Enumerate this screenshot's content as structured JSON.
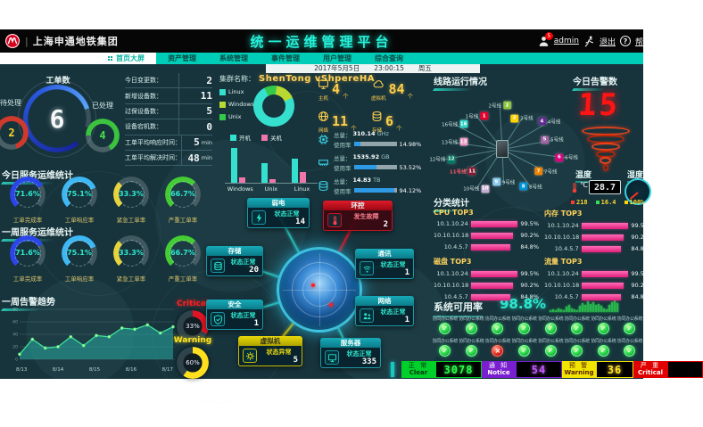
{
  "header": {
    "company": "上海申通地铁集团",
    "title": "统一运维管理平台",
    "user": "admin",
    "badge": "5",
    "logout": "退出",
    "help": "帮"
  },
  "nav": {
    "tabs": [
      "首页大屏",
      "资产管理",
      "系统管理",
      "事件管理",
      "用户管理",
      "综合查询"
    ],
    "date": "2017年5月5日",
    "time": "23:00:15",
    "weekday": "周五"
  },
  "workorder": {
    "title": "工单数",
    "total": "6",
    "pending_label": "待处理",
    "pending_value": "2",
    "done_label": "已处理",
    "done_value": "4",
    "stats": [
      {
        "label": "今日变更数：",
        "value": "2",
        "unit": ""
      },
      {
        "label": "新增设备数：",
        "value": "11",
        "unit": ""
      },
      {
        "label": "过保设备数：",
        "value": "5",
        "unit": ""
      },
      {
        "label": "设备宕机数：",
        "value": "0",
        "unit": ""
      },
      {
        "label": "工单平均响应时间：",
        "value": "5",
        "unit": "min"
      },
      {
        "label": "工单平均解决时间：",
        "value": "48",
        "unit": "min"
      }
    ]
  },
  "today_stats": {
    "title": "今日服务运维统计",
    "gauges": [
      {
        "value": "71.6%",
        "pct": 71.6,
        "label": "工单完成率",
        "color": "#2b46e8"
      },
      {
        "value": "75.1%",
        "pct": 75.1,
        "label": "工单响应率",
        "color": "#3db8f5"
      },
      {
        "value": "33.3%",
        "pct": 33.3,
        "label": "紧急工单率",
        "color": "#e7d33b"
      },
      {
        "value": "66.7%",
        "pct": 66.7,
        "label": "严重工单率",
        "color": "#44cc35"
      }
    ]
  },
  "week_stats": {
    "title": "一周服务运维统计",
    "gauges": [
      {
        "value": "71.6%",
        "pct": 71.6,
        "label": "工单完成率",
        "color": "#2b46e8"
      },
      {
        "value": "75.1%",
        "pct": 75.1,
        "label": "工单响应率",
        "color": "#3db8f5"
      },
      {
        "value": "33.3%",
        "pct": 33.3,
        "label": "紧急工单率",
        "color": "#e7d33b"
      },
      {
        "value": "66.7%",
        "pct": 66.7,
        "label": "严重工单率",
        "color": "#44cc35"
      }
    ]
  },
  "trend": {
    "title": "一周告警趋势",
    "chart_data": {
      "type": "area",
      "x_labels": [
        "8/13",
        "8/14",
        "8/15",
        "8/16",
        "8/17"
      ],
      "values": [
        8,
        32,
        18,
        20,
        36,
        22,
        38,
        36,
        50,
        48,
        55,
        42,
        52
      ],
      "ylim": [
        0,
        80
      ],
      "yticks": [
        0,
        20,
        40,
        60,
        80
      ],
      "line_color": "#3fe09a",
      "fill_color": "rgba(40,170,160,0.55)",
      "grid": true
    }
  },
  "alert_gauges": {
    "critical_label": "Critical",
    "critical_value": "33%",
    "critical_pct": 33,
    "warning_label": "Warning",
    "warning_value": "60%",
    "warning_pct": 60
  },
  "cluster": {
    "name_label": "集群名称：",
    "name": "ShenTong vShpereHA",
    "os_donut": {
      "type": "pie",
      "legend": [
        {
          "label": "Linux",
          "color": "#35e0cf",
          "value": 74
        },
        {
          "label": "Windows",
          "color": "#b8d832",
          "value": 16
        },
        {
          "label": "Unix",
          "color": "#35c94a",
          "value": 10
        }
      ]
    },
    "power_bars": {
      "type": "bar",
      "categories": [
        "Windows",
        "Unix",
        "Linux"
      ],
      "legend": [
        {
          "label": "开机",
          "color": "#35e0cf"
        },
        {
          "label": "关机",
          "color": "#f075a8"
        }
      ],
      "series": [
        {
          "name": "开机",
          "values": [
            62,
            35,
            43
          ]
        },
        {
          "name": "关机",
          "values": [
            9,
            7,
            19
          ]
        }
      ]
    },
    "counts": [
      {
        "label": "主机",
        "value": "4",
        "unit": "个"
      },
      {
        "label": "虚拟机",
        "value": "84",
        "unit": "个"
      },
      {
        "label": "网络",
        "value": "11",
        "unit": "个"
      },
      {
        "label": "存储",
        "value": "6",
        "unit": "个"
      }
    ],
    "resources": [
      {
        "name": "cpu",
        "total_label": "总量：",
        "total": "310.14",
        "unit": "GHz",
        "usage_label": "使用率",
        "usage": "14.98%",
        "pct": 14.98
      },
      {
        "name": "memory",
        "total_label": "总量：",
        "total": "1535.92",
        "unit": "GB",
        "usage_label": "使用率",
        "usage": "53.52%",
        "pct": 53.52
      },
      {
        "name": "storage",
        "total_label": "总量：",
        "total": "14.83",
        "unit": "TB",
        "usage_label": "使用率",
        "usage": "94.12%",
        "pct": 94.12
      }
    ]
  },
  "topology": {
    "nodes": [
      {
        "id": "ruodian",
        "name": "弱电",
        "status": "状态正常",
        "count": "14",
        "state": "normal"
      },
      {
        "id": "huankong",
        "name": "环控",
        "status": "发生故障",
        "count": "2",
        "state": "fault"
      },
      {
        "id": "cunchu",
        "name": "存储",
        "status": "状态正常",
        "count": "20",
        "state": "normal"
      },
      {
        "id": "tongxun",
        "name": "通讯",
        "status": "状态正常",
        "count": "1",
        "state": "normal"
      },
      {
        "id": "anquan",
        "name": "安全",
        "status": "状态正常",
        "count": "1",
        "state": "normal"
      },
      {
        "id": "wangluo",
        "name": "网络",
        "status": "状态正常",
        "count": "1",
        "state": "normal"
      },
      {
        "id": "xuniji",
        "name": "虚拟机",
        "status": "状态异常",
        "count": "5",
        "state": "warning"
      },
      {
        "id": "fuwuqi",
        "name": "服务器",
        "status": "状态正常",
        "count": "335",
        "state": "normal"
      }
    ]
  },
  "lines": {
    "title": "线路运行情况",
    "items": [
      {
        "name": "1号线",
        "color": "#e4002b"
      },
      {
        "name": "2号线",
        "color": "#8cc63e"
      },
      {
        "name": "3号线",
        "color": "#ffd100"
      },
      {
        "name": "4号线",
        "color": "#5f2c8e"
      },
      {
        "name": "5号线",
        "color": "#a064a3"
      },
      {
        "name": "6号线",
        "color": "#d9027d"
      },
      {
        "name": "7号线",
        "color": "#f08200"
      },
      {
        "name": "8号线",
        "color": "#0094d8"
      },
      {
        "name": "9号线",
        "color": "#87caed"
      },
      {
        "name": "10号线",
        "color": "#c6afd4"
      },
      {
        "name": "11号线",
        "color": "#871730",
        "alert": true
      },
      {
        "name": "12号线",
        "color": "#007a60"
      },
      {
        "name": "13号线",
        "color": "#e999c0"
      },
      {
        "name": "16号线",
        "color": "#2cd5c4"
      }
    ]
  },
  "alarm": {
    "title": "今日告警数",
    "count": "15",
    "temp_label": "温度",
    "temp_value": "28.7",
    "temp_unit": "℃",
    "humidity_label": "湿度",
    "env": [
      {
        "value": "218",
        "color": "#ff3b30"
      },
      {
        "value": "16.4",
        "color": "#35e055"
      },
      {
        "value": "100%",
        "color": "#ffd700"
      }
    ]
  },
  "classify": {
    "title": "分类统计",
    "groups": [
      {
        "title": "CPU TOP3",
        "rows": [
          {
            "ip": "10.1.10.24",
            "value": "99.5%",
            "pct": 99.5
          },
          {
            "ip": "10.10.10.18",
            "value": "90.2%",
            "pct": 90.2
          },
          {
            "ip": "10.4.5.7",
            "value": "84.8%",
            "pct": 84.8
          }
        ]
      },
      {
        "title": "内存 TOP3",
        "rows": [
          {
            "ip": "10.1.10.24",
            "value": "99.5%",
            "pct": 99.5
          },
          {
            "ip": "10.10.10.18",
            "value": "90.2%",
            "pct": 90.2
          },
          {
            "ip": "10.4.5.7",
            "value": "84.8%",
            "pct": 84.8
          }
        ]
      },
      {
        "title": "磁盘 TOP3",
        "rows": [
          {
            "ip": "10.1.10.24",
            "value": "99.5%",
            "pct": 99.5
          },
          {
            "ip": "10.10.10.18",
            "value": "90.2%",
            "pct": 90.2
          },
          {
            "ip": "10.4.5.7",
            "value": "84.8%",
            "pct": 84.8
          }
        ]
      },
      {
        "title": "流量 TOP3",
        "rows": [
          {
            "ip": "10.1.10.24",
            "value": "99.5%",
            "pct": 99.5
          },
          {
            "ip": "10.10.10.18",
            "value": "90.2%",
            "pct": 90.2
          },
          {
            "ip": "10.4.5.7",
            "value": "84.8%",
            "pct": 84.8
          }
        ]
      }
    ]
  },
  "availability": {
    "label": "系统可用率",
    "value": "98.8%",
    "spark": [
      2,
      3,
      2,
      4,
      3,
      2,
      5,
      7,
      4,
      3,
      2,
      6,
      9,
      7,
      11,
      8,
      10,
      7,
      8,
      6,
      4,
      3,
      7,
      10,
      12,
      9
    ]
  },
  "systems": {
    "item_label": "协同办公系统",
    "states": [
      "ok",
      "ok",
      "ok",
      "ok",
      "ok",
      "ok",
      "ok",
      "ok",
      "ok",
      "ok",
      "fail",
      "ok",
      "ok",
      "ok",
      "ok",
      "ok"
    ]
  },
  "statusbar": {
    "items": [
      {
        "cn": "正 常",
        "en": "Clear",
        "value": "3078",
        "color": "#00d02a",
        "text": "#053311",
        "vcolor": "#2aff4a"
      },
      {
        "cn": "通 知",
        "en": "Notice",
        "value": "54",
        "color": "#7a1fd0",
        "text": "#ffffff",
        "vcolor": "#c45cff"
      },
      {
        "cn": "预 警",
        "en": "Warning",
        "value": "36",
        "color": "#f0e400",
        "text": "#5a2000",
        "vcolor": "#ffe12a"
      },
      {
        "cn": "严 重",
        "en": "Critical",
        "value": "",
        "color": "#e00000",
        "text": "#ffffff",
        "vcolor": "#ff3333"
      }
    ]
  }
}
